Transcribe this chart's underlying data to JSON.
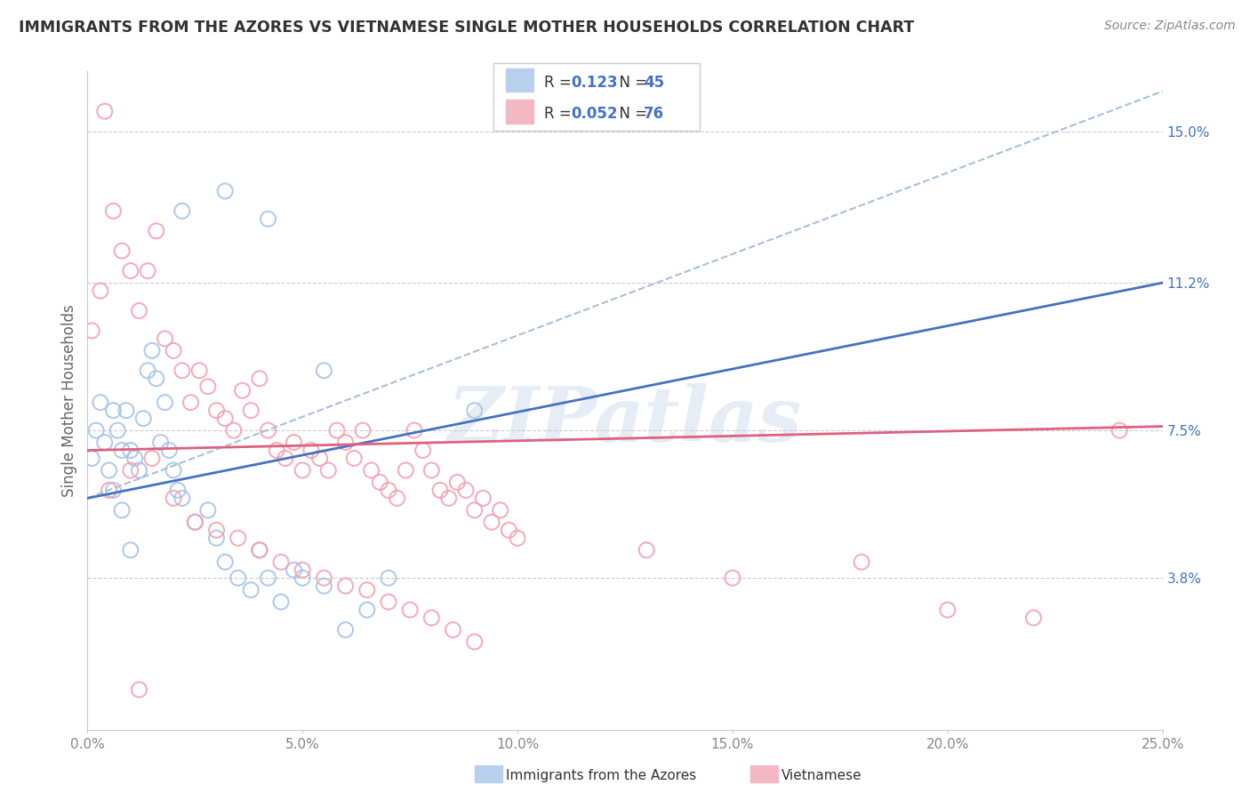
{
  "title": "IMMIGRANTS FROM THE AZORES VS VIETNAMESE SINGLE MOTHER HOUSEHOLDS CORRELATION CHART",
  "source": "Source: ZipAtlas.com",
  "ylabel": "Single Mother Households",
  "xlim": [
    0.0,
    0.25
  ],
  "ylim": [
    0.0,
    0.165
  ],
  "xtick_vals": [
    0.0,
    0.05,
    0.1,
    0.15,
    0.2,
    0.25
  ],
  "xtick_labels": [
    "0.0%",
    "5.0%",
    "10.0%",
    "15.0%",
    "20.0%",
    "25.0%"
  ],
  "ytick_vals": [
    0.038,
    0.075,
    0.112,
    0.15
  ],
  "ytick_labels": [
    "3.8%",
    "7.5%",
    "11.2%",
    "15.0%"
  ],
  "blue_color": "#a4c2e8",
  "pink_color": "#f4a0b0",
  "blue_line_color": "#4472c4",
  "pink_line_color": "#e06080",
  "dashed_color": "#a0b8d8",
  "legend_R_blue": "0.123",
  "legend_N_blue": "45",
  "legend_R_pink": "0.052",
  "legend_N_pink": "76",
  "legend_label_blue": "Immigrants from the Azores",
  "legend_label_pink": "Vietnamese",
  "watermark": "ZIPatlas",
  "blue_reg": [
    0.058,
    0.112
  ],
  "pink_reg": [
    0.07,
    0.076
  ],
  "dashed_reg": [
    0.058,
    0.16
  ],
  "blue_scatter_x": [
    0.001,
    0.002,
    0.003,
    0.004,
    0.005,
    0.006,
    0.006,
    0.007,
    0.008,
    0.008,
    0.009,
    0.01,
    0.01,
    0.011,
    0.012,
    0.013,
    0.014,
    0.015,
    0.016,
    0.017,
    0.018,
    0.019,
    0.02,
    0.021,
    0.022,
    0.025,
    0.028,
    0.03,
    0.032,
    0.035,
    0.038,
    0.04,
    0.042,
    0.045,
    0.048,
    0.05,
    0.055,
    0.06,
    0.065,
    0.07,
    0.022,
    0.032,
    0.042,
    0.055,
    0.09
  ],
  "blue_scatter_y": [
    0.068,
    0.075,
    0.082,
    0.072,
    0.065,
    0.08,
    0.06,
    0.075,
    0.07,
    0.055,
    0.08,
    0.07,
    0.045,
    0.068,
    0.065,
    0.078,
    0.09,
    0.095,
    0.088,
    0.072,
    0.082,
    0.07,
    0.065,
    0.06,
    0.058,
    0.052,
    0.055,
    0.048,
    0.042,
    0.038,
    0.035,
    0.045,
    0.038,
    0.032,
    0.04,
    0.038,
    0.036,
    0.025,
    0.03,
    0.038,
    0.13,
    0.135,
    0.128,
    0.09,
    0.08
  ],
  "pink_scatter_x": [
    0.001,
    0.003,
    0.004,
    0.006,
    0.008,
    0.01,
    0.012,
    0.014,
    0.016,
    0.018,
    0.02,
    0.022,
    0.024,
    0.026,
    0.028,
    0.03,
    0.032,
    0.034,
    0.036,
    0.038,
    0.04,
    0.042,
    0.044,
    0.046,
    0.048,
    0.05,
    0.052,
    0.054,
    0.056,
    0.058,
    0.06,
    0.062,
    0.064,
    0.066,
    0.068,
    0.07,
    0.072,
    0.074,
    0.076,
    0.078,
    0.08,
    0.082,
    0.084,
    0.086,
    0.088,
    0.09,
    0.092,
    0.094,
    0.096,
    0.098,
    0.1,
    0.005,
    0.01,
    0.015,
    0.02,
    0.025,
    0.03,
    0.035,
    0.04,
    0.045,
    0.05,
    0.055,
    0.06,
    0.065,
    0.07,
    0.075,
    0.08,
    0.085,
    0.09,
    0.13,
    0.15,
    0.18,
    0.2,
    0.22,
    0.24,
    0.012
  ],
  "pink_scatter_y": [
    0.1,
    0.11,
    0.155,
    0.13,
    0.12,
    0.115,
    0.105,
    0.115,
    0.125,
    0.098,
    0.095,
    0.09,
    0.082,
    0.09,
    0.086,
    0.08,
    0.078,
    0.075,
    0.085,
    0.08,
    0.088,
    0.075,
    0.07,
    0.068,
    0.072,
    0.065,
    0.07,
    0.068,
    0.065,
    0.075,
    0.072,
    0.068,
    0.075,
    0.065,
    0.062,
    0.06,
    0.058,
    0.065,
    0.075,
    0.07,
    0.065,
    0.06,
    0.058,
    0.062,
    0.06,
    0.055,
    0.058,
    0.052,
    0.055,
    0.05,
    0.048,
    0.06,
    0.065,
    0.068,
    0.058,
    0.052,
    0.05,
    0.048,
    0.045,
    0.042,
    0.04,
    0.038,
    0.036,
    0.035,
    0.032,
    0.03,
    0.028,
    0.025,
    0.022,
    0.045,
    0.038,
    0.042,
    0.03,
    0.028,
    0.075,
    0.01
  ]
}
